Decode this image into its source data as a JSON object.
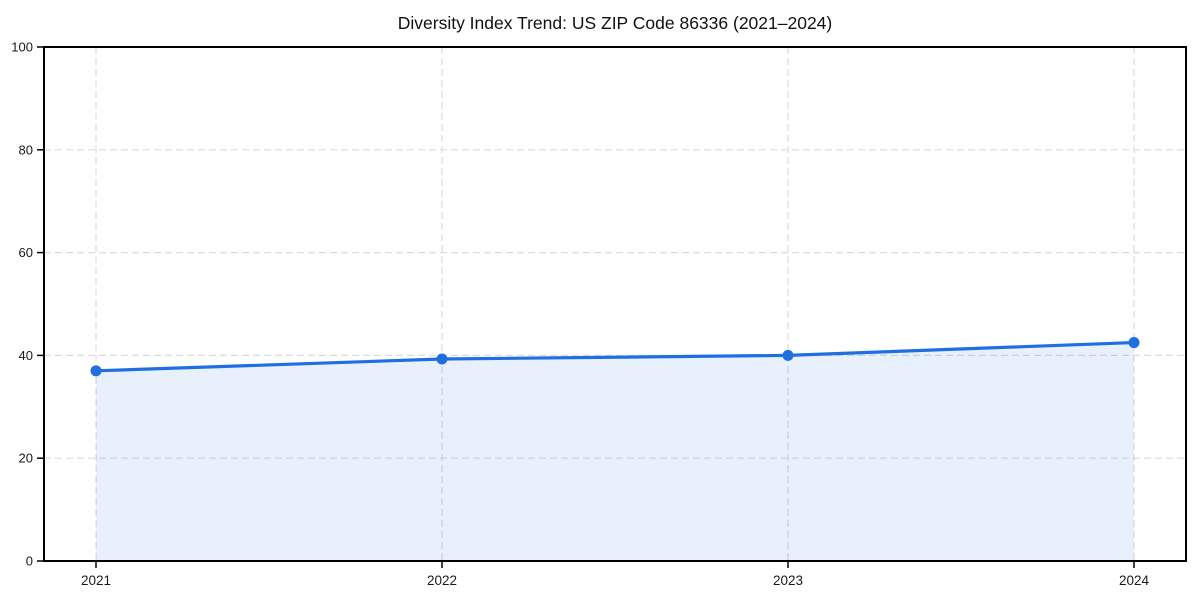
{
  "chart_data": {
    "type": "area",
    "title": "Diversity Index Trend: US ZIP Code 86336 (2021–2024)",
    "categories": [
      "2021",
      "2022",
      "2023",
      "2024"
    ],
    "values": [
      37.0,
      39.3,
      40.0,
      42.5
    ],
    "series_name": "Diversity Index",
    "xlabel": "",
    "ylabel": "",
    "ylim": [
      0,
      100
    ],
    "yticks": [
      0,
      20,
      40,
      60,
      80,
      100
    ],
    "grid": "dashed",
    "legend_position": "none",
    "marker": "circle",
    "colors": {
      "line": "#1f6fe3",
      "fill": "#1f6fe3",
      "fill_opacity": 0.1,
      "grid": "#dcdcdc",
      "axis": "#000000",
      "tick_text": "#1a1a1a",
      "background": "#ffffff"
    }
  }
}
